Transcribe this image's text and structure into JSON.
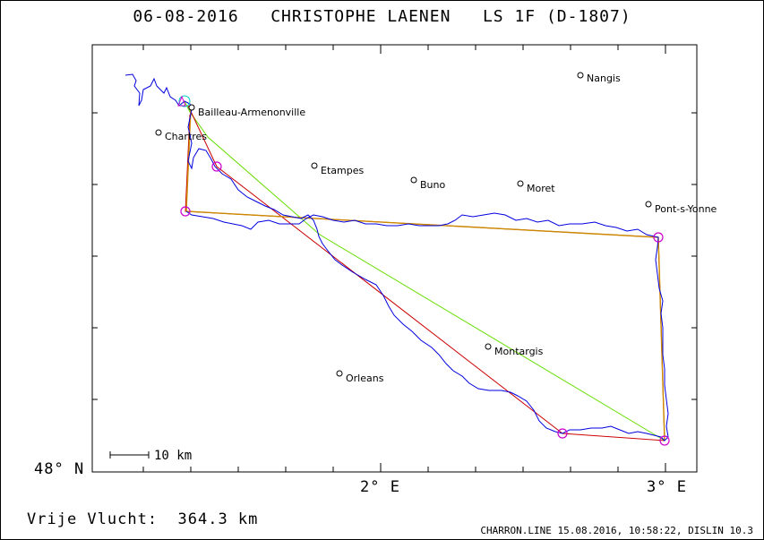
{
  "title": "06-08-2016   CHRISTOPHE LAENEN   LS 1F (D-1807)",
  "axis": {
    "lat_label": "48° N",
    "lon_labels": [
      "2° E",
      "3° E"
    ]
  },
  "places": [
    {
      "name": "Nangis"
    },
    {
      "name": "Bailleau-Armenonville"
    },
    {
      "name": "Chartres"
    },
    {
      "name": "Etampes"
    },
    {
      "name": "Buno"
    },
    {
      "name": "Moret"
    },
    {
      "name": "Pont-s-Yonne"
    },
    {
      "name": "Montargis"
    },
    {
      "name": "Orleans"
    }
  ],
  "scale_bar": {
    "label": "10 km"
  },
  "footer": {
    "distance_label": "Vrije Vlucht:  364.3 km",
    "source": "CHARRON.LINE 15.08.2016, 10:58:22, DISLIN 10.3"
  },
  "colors": {
    "track": "#0000e0",
    "task_line": "#cc0000",
    "optimised_line": "#cc8800",
    "alt_line": "#66dd00",
    "turnpoint": "#cc00cc",
    "start_marker": "#00cccc"
  }
}
